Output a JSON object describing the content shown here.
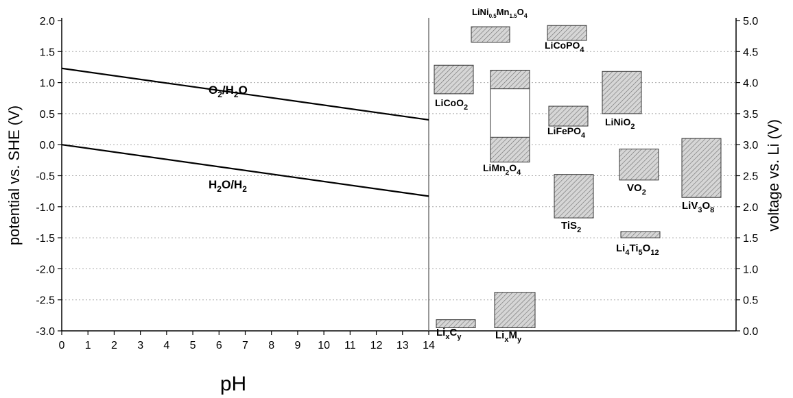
{
  "chart_data": {
    "type": "line",
    "xlabel": "pH",
    "ylabel_left": "potential vs. SHE (V)",
    "ylabel_right": "voltage vs. Li (V)",
    "xlim": [
      0,
      14
    ],
    "ylim_left": [
      -3.0,
      2.0
    ],
    "ylim_right": [
      0.0,
      5.0
    ],
    "x_ticks": [
      0,
      1,
      2,
      3,
      4,
      5,
      6,
      7,
      8,
      9,
      10,
      11,
      12,
      13,
      14
    ],
    "y_ticks_left": [
      2.0,
      1.5,
      1.0,
      0.5,
      0.0,
      -0.5,
      -1.0,
      -1.5,
      -2.0,
      -2.5,
      -3.0
    ],
    "y_ticks_right": [
      5.0,
      4.5,
      4.0,
      3.5,
      3.0,
      2.5,
      2.0,
      1.5,
      1.0,
      0.5,
      0.0
    ],
    "grid": true,
    "series": [
      {
        "name": "O2/H2O",
        "x": [
          0,
          14
        ],
        "y": [
          1.23,
          0.4
        ]
      },
      {
        "name": "H2O/H2",
        "x": [
          0,
          14
        ],
        "y": [
          0.0,
          -0.83
        ]
      }
    ],
    "materials": [
      {
        "name": "LiCoO2",
        "ymin_li": 3.82,
        "ymax_li": 4.28
      },
      {
        "name": "LiNi0.5Mn1.5O4",
        "ymin_li": 4.65,
        "ymax_li": 4.9
      },
      {
        "name": "LiCoPO4",
        "ymin_li": 4.68,
        "ymax_li": 4.92
      },
      {
        "name": "LiMn2O4 (upper)",
        "ymin_li": 3.9,
        "ymax_li": 4.2
      },
      {
        "name": "LiMn2O4",
        "ymin_li": 2.72,
        "ymax_li": 3.12
      },
      {
        "name": "LiFePO4",
        "ymin_li": 3.3,
        "ymax_li": 3.62
      },
      {
        "name": "LiNiO2",
        "ymin_li": 3.5,
        "ymax_li": 4.18
      },
      {
        "name": "VO2",
        "ymin_li": 2.43,
        "ymax_li": 2.93
      },
      {
        "name": "LiV3O8",
        "ymin_li": 2.15,
        "ymax_li": 3.1
      },
      {
        "name": "TiS2",
        "ymin_li": 1.82,
        "ymax_li": 2.52
      },
      {
        "name": "Li4Ti5O12",
        "ymin_li": 1.5,
        "ymax_li": 1.6
      },
      {
        "name": "LixCy",
        "ymin_li": 0.05,
        "ymax_li": 0.18
      },
      {
        "name": "LixMy",
        "ymin_li": 0.05,
        "ymax_li": 0.62
      }
    ]
  },
  "labels": {
    "o2h2o": [
      "O",
      "2",
      "/H",
      "2",
      "O"
    ],
    "h2oh2": [
      "H",
      "2",
      "O/H",
      "2"
    ],
    "licoo2": [
      "LiCoO",
      "2"
    ],
    "linimn": [
      "LiNi",
      "0.5",
      "Mn",
      "1.5",
      "O",
      "4"
    ],
    "licopo4": [
      "LiCoPO",
      "4"
    ],
    "limn2o4": [
      "LiMn",
      "2",
      "O",
      "4"
    ],
    "lifepo4": [
      "LiFePO",
      "4"
    ],
    "linio2": [
      "LiNiO",
      "2"
    ],
    "vo2": [
      "VO",
      "2"
    ],
    "liv3o8": [
      "LiV",
      "3",
      "O",
      "8"
    ],
    "tis2": [
      "TiS",
      "2"
    ],
    "li4ti5o12": [
      "Li",
      "4",
      "Ti",
      "5",
      "O",
      "12"
    ],
    "lixcy": [
      "Li",
      "x",
      "C",
      "y"
    ],
    "lixmy": [
      "Li",
      "x",
      "M",
      "y"
    ]
  },
  "colors": {
    "box_fill": "#cfcfcf",
    "hatch": "#6e6e6e",
    "grid": "#a8a8a8",
    "line": "#000000"
  }
}
